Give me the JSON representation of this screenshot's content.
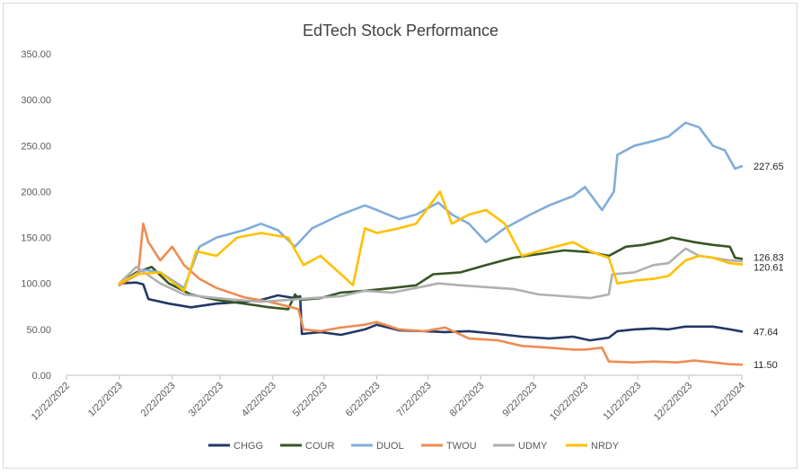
{
  "chart_data": {
    "type": "line",
    "title": "EdTech Stock Performance",
    "xlabel": "",
    "ylabel": "",
    "ylim": [
      0,
      350
    ],
    "y_ticks": [
      "0.00",
      "50.00",
      "100.00",
      "150.00",
      "200.00",
      "250.00",
      "300.00",
      "350.00"
    ],
    "x_ticks": [
      "12/22/2022",
      "1/22/2023",
      "2/22/2023",
      "3/22/2023",
      "4/22/2023",
      "5/22/2023",
      "6/22/2023",
      "7/22/2023",
      "8/22/2023",
      "9/22/2023",
      "10/22/2023",
      "11/22/2023",
      "12/22/2023",
      "1/22/2024"
    ],
    "x_start": "2022-12-22",
    "x_end": "2024-01-22",
    "grid": false,
    "legend_position": "bottom",
    "series": [
      {
        "name": "CHGG",
        "color": "#203864",
        "end_label": "47.64",
        "points": [
          [
            "2023-01-22",
            100
          ],
          [
            "2023-02-01",
            101
          ],
          [
            "2023-02-05",
            99
          ],
          [
            "2023-02-08",
            83
          ],
          [
            "2023-02-20",
            78
          ],
          [
            "2023-03-05",
            74
          ],
          [
            "2023-03-20",
            78
          ],
          [
            "2023-04-05",
            80
          ],
          [
            "2023-04-15",
            82
          ],
          [
            "2023-04-25",
            87
          ],
          [
            "2023-05-05",
            84
          ],
          [
            "2023-05-08",
            86
          ],
          [
            "2023-05-09",
            45
          ],
          [
            "2023-05-20",
            47
          ],
          [
            "2023-06-01",
            44
          ],
          [
            "2023-06-15",
            50
          ],
          [
            "2023-06-22",
            55
          ],
          [
            "2023-07-05",
            49
          ],
          [
            "2023-07-20",
            48
          ],
          [
            "2023-08-01",
            47
          ],
          [
            "2023-08-15",
            48
          ],
          [
            "2023-09-01",
            45
          ],
          [
            "2023-09-15",
            42
          ],
          [
            "2023-10-01",
            40
          ],
          [
            "2023-10-15",
            42
          ],
          [
            "2023-10-25",
            38
          ],
          [
            "2023-11-05",
            41
          ],
          [
            "2023-11-10",
            48
          ],
          [
            "2023-11-20",
            50
          ],
          [
            "2023-12-01",
            51
          ],
          [
            "2023-12-10",
            50
          ],
          [
            "2023-12-20",
            53
          ],
          [
            "2024-01-05",
            53
          ],
          [
            "2024-01-15",
            50
          ],
          [
            "2024-01-22",
            47.64
          ]
        ]
      },
      {
        "name": "COUR",
        "color": "#375623",
        "end_label": "126.83",
        "points": [
          [
            "2023-01-22",
            100
          ],
          [
            "2023-02-01",
            112
          ],
          [
            "2023-02-10",
            118
          ],
          [
            "2023-02-20",
            100
          ],
          [
            "2023-03-05",
            88
          ],
          [
            "2023-03-20",
            82
          ],
          [
            "2023-04-05",
            78
          ],
          [
            "2023-04-20",
            74
          ],
          [
            "2023-05-01",
            72
          ],
          [
            "2023-05-05",
            88
          ],
          [
            "2023-05-08",
            82
          ],
          [
            "2023-05-20",
            84
          ],
          [
            "2023-06-01",
            90
          ],
          [
            "2023-06-15",
            92
          ],
          [
            "2023-07-01",
            95
          ],
          [
            "2023-07-15",
            98
          ],
          [
            "2023-07-25",
            110
          ],
          [
            "2023-08-10",
            112
          ],
          [
            "2023-08-25",
            120
          ],
          [
            "2023-09-10",
            128
          ],
          [
            "2023-09-25",
            132
          ],
          [
            "2023-10-10",
            136
          ],
          [
            "2023-10-25",
            134
          ],
          [
            "2023-11-05",
            130
          ],
          [
            "2023-11-15",
            140
          ],
          [
            "2023-11-25",
            142
          ],
          [
            "2023-12-05",
            146
          ],
          [
            "2023-12-12",
            150
          ],
          [
            "2023-12-25",
            145
          ],
          [
            "2024-01-05",
            142
          ],
          [
            "2024-01-15",
            140
          ],
          [
            "2024-01-18",
            128
          ],
          [
            "2024-01-22",
            126.83
          ]
        ]
      },
      {
        "name": "DUOL",
        "color": "#7fadd9",
        "end_label": "227.65",
        "points": [
          [
            "2023-01-22",
            100
          ],
          [
            "2023-02-05",
            115
          ],
          [
            "2023-02-15",
            112
          ],
          [
            "2023-03-01",
            95
          ],
          [
            "2023-03-10",
            140
          ],
          [
            "2023-03-20",
            150
          ],
          [
            "2023-04-05",
            158
          ],
          [
            "2023-04-15",
            165
          ],
          [
            "2023-04-25",
            158
          ],
          [
            "2023-05-05",
            140
          ],
          [
            "2023-05-15",
            160
          ],
          [
            "2023-06-01",
            175
          ],
          [
            "2023-06-15",
            185
          ],
          [
            "2023-06-22",
            180
          ],
          [
            "2023-07-05",
            170
          ],
          [
            "2023-07-15",
            175
          ],
          [
            "2023-07-28",
            188
          ],
          [
            "2023-08-05",
            175
          ],
          [
            "2023-08-15",
            165
          ],
          [
            "2023-08-25",
            145
          ],
          [
            "2023-09-05",
            160
          ],
          [
            "2023-09-20",
            175
          ],
          [
            "2023-10-01",
            185
          ],
          [
            "2023-10-15",
            195
          ],
          [
            "2023-10-22",
            205
          ],
          [
            "2023-11-01",
            180
          ],
          [
            "2023-11-08",
            200
          ],
          [
            "2023-11-10",
            240
          ],
          [
            "2023-11-20",
            250
          ],
          [
            "2023-12-01",
            255
          ],
          [
            "2023-12-10",
            260
          ],
          [
            "2023-12-20",
            275
          ],
          [
            "2023-12-28",
            270
          ],
          [
            "2024-01-05",
            250
          ],
          [
            "2024-01-12",
            245
          ],
          [
            "2024-01-18",
            225
          ],
          [
            "2024-01-22",
            227.65
          ]
        ]
      },
      {
        "name": "TWOU",
        "color": "#ed8c52",
        "end_label": "11.50",
        "points": [
          [
            "2023-01-22",
            98
          ],
          [
            "2023-01-28",
            105
          ],
          [
            "2023-02-02",
            110
          ],
          [
            "2023-02-05",
            165
          ],
          [
            "2023-02-08",
            145
          ],
          [
            "2023-02-15",
            125
          ],
          [
            "2023-02-22",
            140
          ],
          [
            "2023-03-01",
            120
          ],
          [
            "2023-03-10",
            105
          ],
          [
            "2023-03-20",
            95
          ],
          [
            "2023-04-05",
            85
          ],
          [
            "2023-04-20",
            80
          ],
          [
            "2023-05-01",
            75
          ],
          [
            "2023-05-07",
            72
          ],
          [
            "2023-05-10",
            50
          ],
          [
            "2023-05-20",
            48
          ],
          [
            "2023-06-01",
            52
          ],
          [
            "2023-06-15",
            55
          ],
          [
            "2023-06-22",
            58
          ],
          [
            "2023-07-05",
            50
          ],
          [
            "2023-07-20",
            48
          ],
          [
            "2023-08-01",
            52
          ],
          [
            "2023-08-15",
            40
          ],
          [
            "2023-09-01",
            38
          ],
          [
            "2023-09-15",
            32
          ],
          [
            "2023-10-01",
            30
          ],
          [
            "2023-10-15",
            28
          ],
          [
            "2023-10-22",
            28
          ],
          [
            "2023-11-01",
            30
          ],
          [
            "2023-11-05",
            15
          ],
          [
            "2023-11-20",
            14
          ],
          [
            "2023-12-01",
            15
          ],
          [
            "2023-12-15",
            14
          ],
          [
            "2023-12-25",
            16
          ],
          [
            "2024-01-05",
            14
          ],
          [
            "2024-01-15",
            12
          ],
          [
            "2024-01-22",
            11.5
          ]
        ]
      },
      {
        "name": "UDMY",
        "color": "#b0b0b0",
        "end_label": "",
        "points": [
          [
            "2023-01-22",
            100
          ],
          [
            "2023-02-01",
            118
          ],
          [
            "2023-02-15",
            100
          ],
          [
            "2023-03-01",
            88
          ],
          [
            "2023-03-15",
            85
          ],
          [
            "2023-04-01",
            82
          ],
          [
            "2023-04-15",
            80
          ],
          [
            "2023-05-01",
            82
          ],
          [
            "2023-05-15",
            84
          ],
          [
            "2023-06-01",
            86
          ],
          [
            "2023-06-15",
            92
          ],
          [
            "2023-07-01",
            90
          ],
          [
            "2023-07-15",
            95
          ],
          [
            "2023-07-28",
            100
          ],
          [
            "2023-08-10",
            98
          ],
          [
            "2023-08-25",
            96
          ],
          [
            "2023-09-10",
            94
          ],
          [
            "2023-09-25",
            88
          ],
          [
            "2023-10-10",
            86
          ],
          [
            "2023-10-25",
            84
          ],
          [
            "2023-11-05",
            88
          ],
          [
            "2023-11-07",
            110
          ],
          [
            "2023-11-20",
            112
          ],
          [
            "2023-12-01",
            120
          ],
          [
            "2023-12-10",
            122
          ],
          [
            "2023-12-20",
            138
          ],
          [
            "2023-12-28",
            130
          ],
          [
            "2024-01-05",
            128
          ],
          [
            "2024-01-15",
            125
          ],
          [
            "2024-01-22",
            124
          ]
        ]
      },
      {
        "name": "NRDY",
        "color": "#ffc000",
        "end_label": "120.61",
        "points": [
          [
            "2023-01-22",
            100
          ],
          [
            "2023-02-01",
            110
          ],
          [
            "2023-02-15",
            112
          ],
          [
            "2023-03-01",
            92
          ],
          [
            "2023-03-08",
            135
          ],
          [
            "2023-03-20",
            130
          ],
          [
            "2023-04-01",
            150
          ],
          [
            "2023-04-15",
            155
          ],
          [
            "2023-05-01",
            150
          ],
          [
            "2023-05-10",
            120
          ],
          [
            "2023-05-20",
            130
          ],
          [
            "2023-06-01",
            110
          ],
          [
            "2023-06-08",
            98
          ],
          [
            "2023-06-15",
            160
          ],
          [
            "2023-06-22",
            155
          ],
          [
            "2023-07-05",
            160
          ],
          [
            "2023-07-15",
            165
          ],
          [
            "2023-07-25",
            190
          ],
          [
            "2023-07-29",
            200
          ],
          [
            "2023-08-05",
            165
          ],
          [
            "2023-08-15",
            175
          ],
          [
            "2023-08-25",
            180
          ],
          [
            "2023-09-05",
            165
          ],
          [
            "2023-09-15",
            130
          ],
          [
            "2023-09-25",
            135
          ],
          [
            "2023-10-05",
            140
          ],
          [
            "2023-10-15",
            145
          ],
          [
            "2023-10-25",
            135
          ],
          [
            "2023-11-05",
            128
          ],
          [
            "2023-11-10",
            100
          ],
          [
            "2023-11-20",
            103
          ],
          [
            "2023-12-01",
            105
          ],
          [
            "2023-12-10",
            108
          ],
          [
            "2023-12-20",
            125
          ],
          [
            "2023-12-28",
            130
          ],
          [
            "2024-01-05",
            128
          ],
          [
            "2024-01-15",
            122
          ],
          [
            "2024-01-22",
            120.61
          ]
        ]
      }
    ]
  }
}
